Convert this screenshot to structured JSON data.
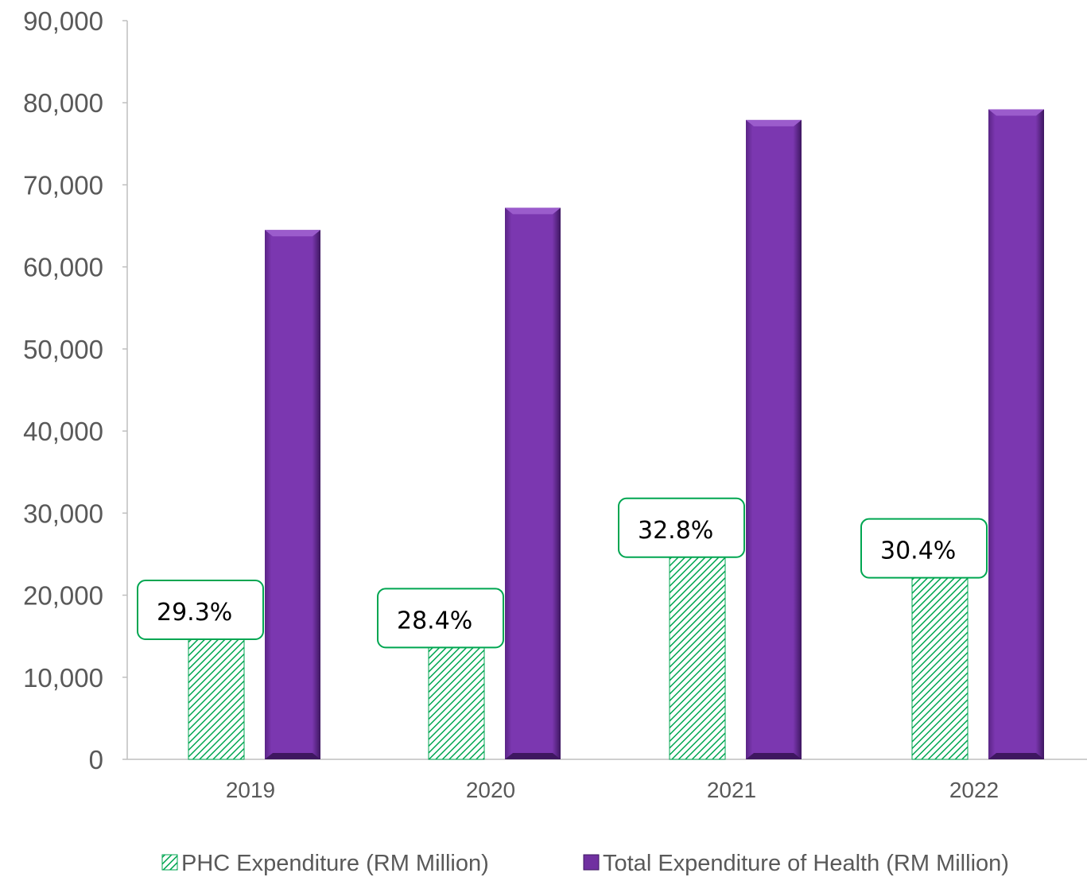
{
  "chart_data": {
    "type": "bar",
    "title": "",
    "xlabel": "",
    "ylabel": "",
    "categories": [
      "2019",
      "2020",
      "2021",
      "2022"
    ],
    "ylim": [
      0,
      90000
    ],
    "yticks": [
      0,
      10000,
      20000,
      30000,
      40000,
      50000,
      60000,
      70000,
      80000,
      90000
    ],
    "ytick_labels": [
      "0",
      "10,000",
      "20,000",
      "30,000",
      "40,000",
      "50,000",
      "60,000",
      "70,000",
      "80,000",
      "90,000"
    ],
    "grid": false,
    "legend_position": "bottom",
    "series": [
      {
        "name": "PHC Expenditure (RM Million)",
        "values": [
          15500,
          14500,
          25500,
          23000
        ],
        "color": "#00A651",
        "fill": "diagonal-hatch"
      },
      {
        "name": "Total Expenditure of Health (RM Million)",
        "values": [
          64500,
          67200,
          77900,
          79200
        ],
        "color": "#7030A0",
        "fill": "solid-bevel"
      }
    ],
    "annotations": [
      "29.3%",
      "28.4%",
      "32.8%",
      "30.4%"
    ]
  }
}
